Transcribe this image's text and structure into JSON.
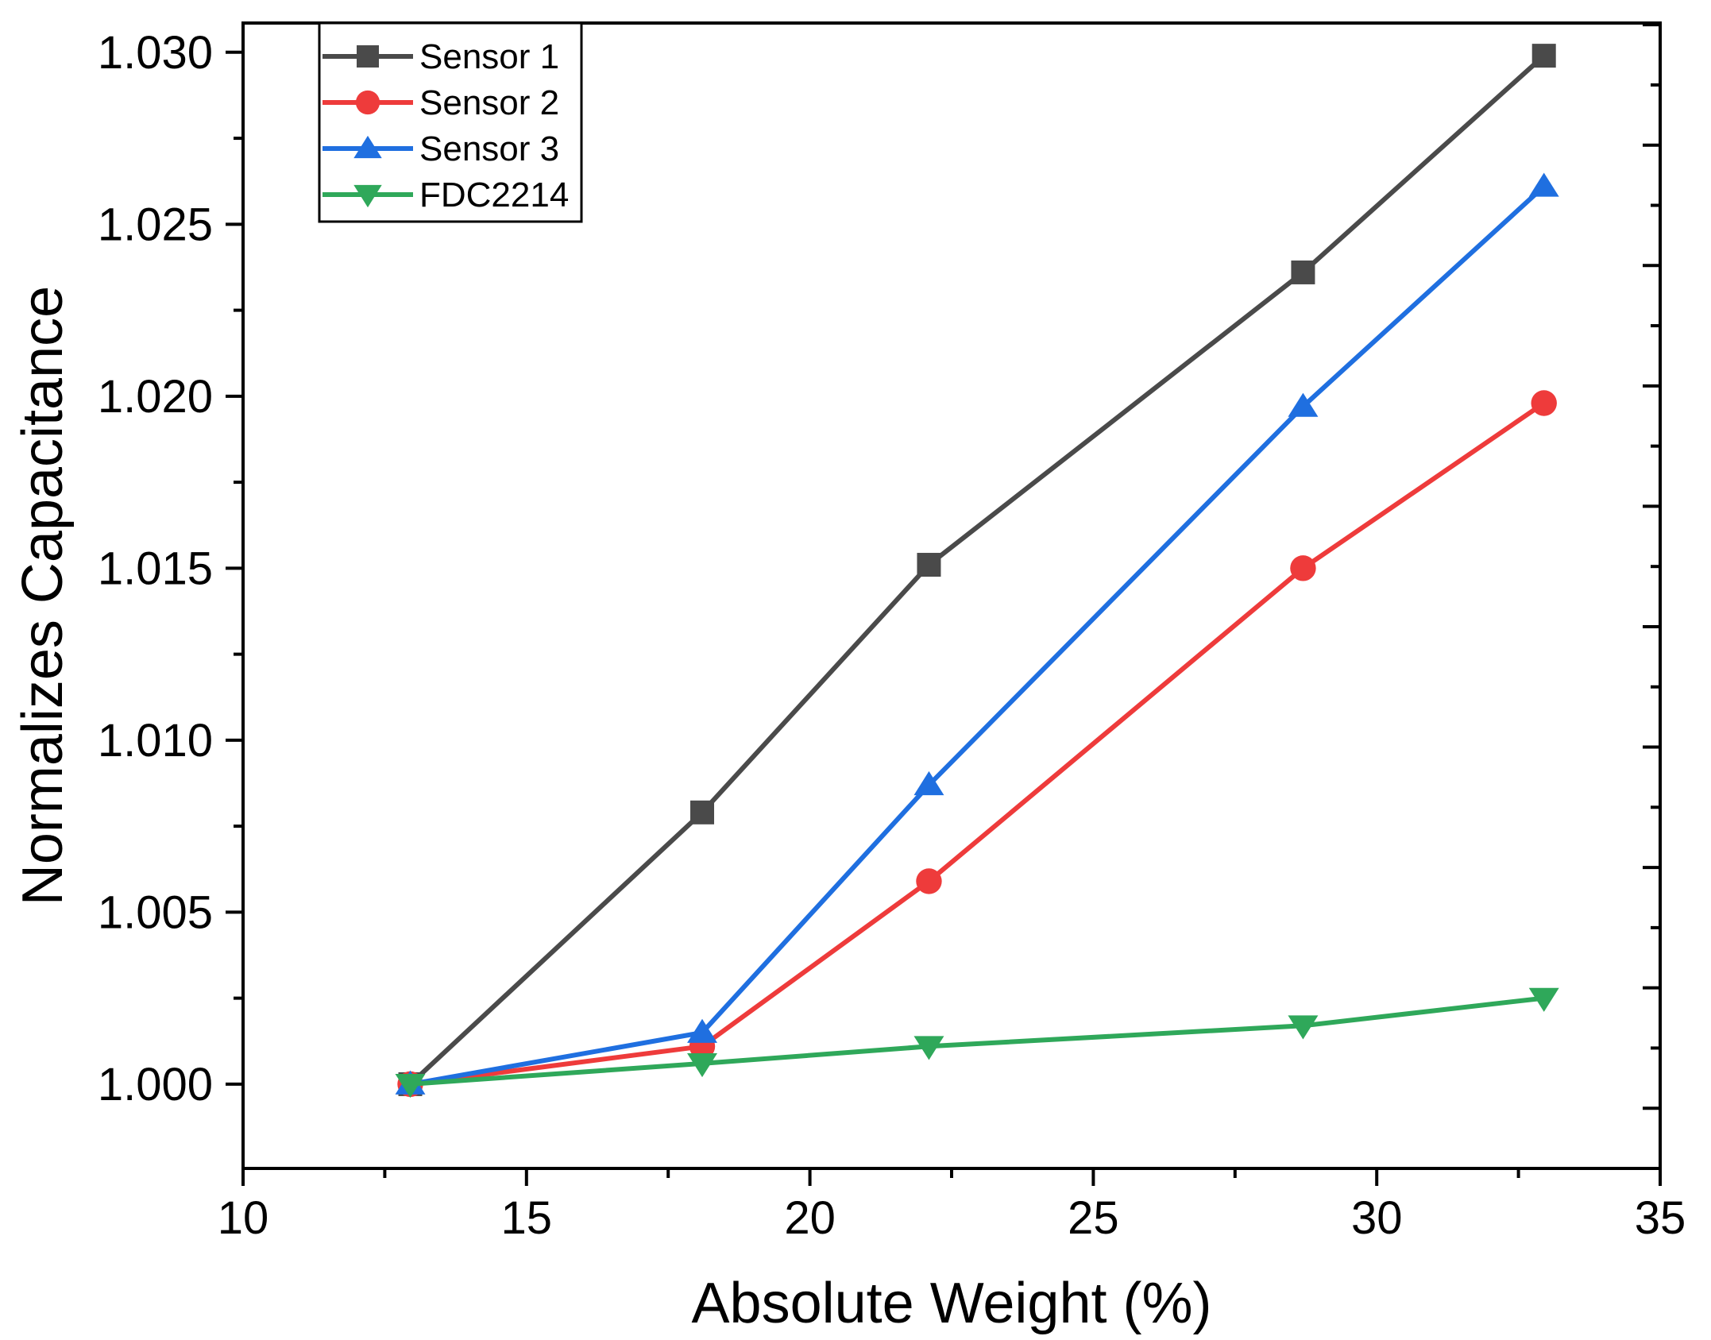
{
  "chart_data": {
    "type": "line",
    "title": "",
    "xlabel": "Absolute Weight (%)",
    "ylabel": "Normalizes Capacitance",
    "xlim": [
      10,
      35
    ],
    "ylim": [
      0.99755,
      1.03085
    ],
    "x_ticks": [
      "10",
      "15",
      "20",
      "25",
      "30",
      "35"
    ],
    "y_ticks": [
      "1.000",
      "1.005",
      "1.010",
      "1.015",
      "1.020",
      "1.025",
      "1.030"
    ],
    "x_tick_values": [
      10,
      15,
      20,
      25,
      30,
      35
    ],
    "y_tick_values": [
      1.0,
      1.005,
      1.01,
      1.015,
      1.02,
      1.025,
      1.03
    ],
    "grid": false,
    "legend_position": "top-left",
    "x": [
      12.95,
      18.1,
      22.1,
      28.7,
      32.95
    ],
    "series": [
      {
        "name": "Sensor 1",
        "color": "#4a4a4a",
        "marker": "square",
        "values": [
          1.0,
          1.0079,
          1.0151,
          1.0236,
          1.0299
        ]
      },
      {
        "name": "Sensor 2",
        "color": "#ee3b3b",
        "marker": "circle",
        "values": [
          1.0,
          1.0011,
          1.0059,
          1.015,
          1.0198
        ]
      },
      {
        "name": "Sensor 3",
        "color": "#1f6fe0",
        "marker": "triangle-up",
        "values": [
          1.0,
          1.0015,
          1.0087,
          1.0197,
          1.0261
        ]
      },
      {
        "name": "FDC2214",
        "color": "#2fa85a",
        "marker": "triangle-down",
        "values": [
          1.0,
          1.0006,
          1.0011,
          1.0017,
          1.0025
        ]
      }
    ]
  }
}
